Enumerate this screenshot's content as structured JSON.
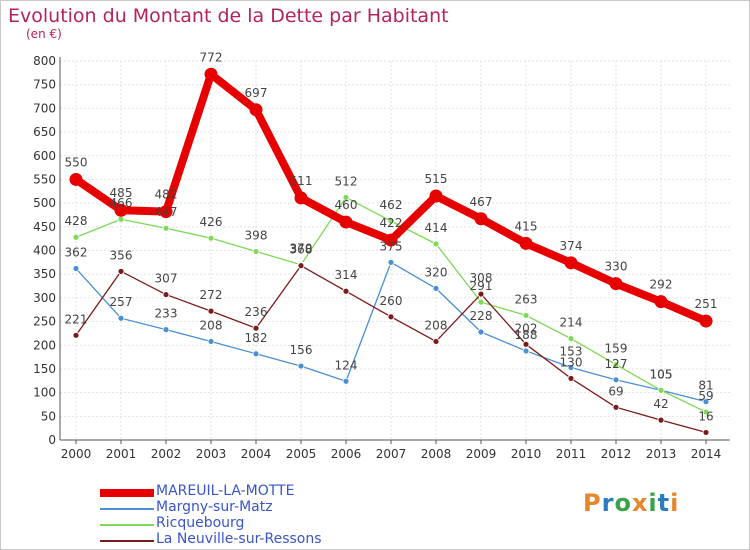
{
  "title": "Evolution du Montant de la Dette par Habitant",
  "unit": "(en €)",
  "logo": {
    "text": "Proxiti",
    "letter_colors": [
      "#e8862b",
      "#2b7dbf",
      "#3aa44a",
      "#e8862b",
      "#3aa44a",
      "#2b7dbf",
      "#e8862b"
    ]
  },
  "chart_data": {
    "type": "line",
    "title": "Evolution du Montant de la Dette par Habitant",
    "ylabel": "(en €)",
    "xlabel": "",
    "x": [
      "2000",
      "2001",
      "2002",
      "2003",
      "2004",
      "2005",
      "2006",
      "2007",
      "2008",
      "2009",
      "2010",
      "2011",
      "2012",
      "2013",
      "2014"
    ],
    "ylim": [
      0,
      800
    ],
    "yticks": [
      "0",
      "50",
      "100",
      "150",
      "200",
      "250",
      "300",
      "350",
      "400",
      "450",
      "500",
      "550",
      "600",
      "650",
      "700",
      "750",
      "800"
    ],
    "grid": true,
    "legend_position": "bottom-left",
    "series": [
      {
        "name": "MAREUIL-LA-MOTTE",
        "color": "#e60000",
        "emphasis": true,
        "values": [
          550,
          485,
          482,
          772,
          697,
          511,
          460,
          422,
          515,
          467,
          415,
          374,
          330,
          292,
          251
        ],
        "labels": [
          "550",
          "485",
          "482",
          "772",
          "697",
          "511",
          "460",
          "422",
          "515",
          "467",
          "415",
          "374",
          "330",
          "292",
          "251"
        ]
      },
      {
        "name": "Margny-sur-Matz",
        "color": "#4a8fd4",
        "emphasis": false,
        "values": [
          362,
          257,
          233,
          208,
          182,
          156,
          124,
          375,
          320,
          228,
          188,
          153,
          127,
          105,
          81
        ],
        "labels": [
          "362",
          "257",
          "233",
          "208",
          "182",
          "156",
          "124",
          "375",
          "320",
          "228",
          "188",
          "153",
          "127",
          "105",
          "81"
        ]
      },
      {
        "name": "Ricquebourg",
        "color": "#7ed957",
        "emphasis": false,
        "values": [
          428,
          466,
          447,
          426,
          398,
          370,
          512,
          462,
          414,
          291,
          263,
          214,
          159,
          105,
          59
        ],
        "labels": [
          "428",
          "466",
          "447",
          "426",
          "398",
          "370",
          "512",
          "462",
          "414",
          "291",
          "263",
          "214",
          "159",
          "105",
          "59"
        ]
      },
      {
        "name": "La Neuville-sur-Ressons",
        "color": "#7b1a1a",
        "emphasis": false,
        "values": [
          221,
          356,
          307,
          272,
          236,
          368,
          314,
          260,
          208,
          308,
          202,
          130,
          69,
          42,
          16
        ],
        "labels": [
          "221",
          "356",
          "307",
          "272",
          "236",
          "368",
          "314",
          "260",
          "208",
          "308",
          "202",
          "130",
          "69",
          "42",
          "16"
        ]
      }
    ]
  }
}
